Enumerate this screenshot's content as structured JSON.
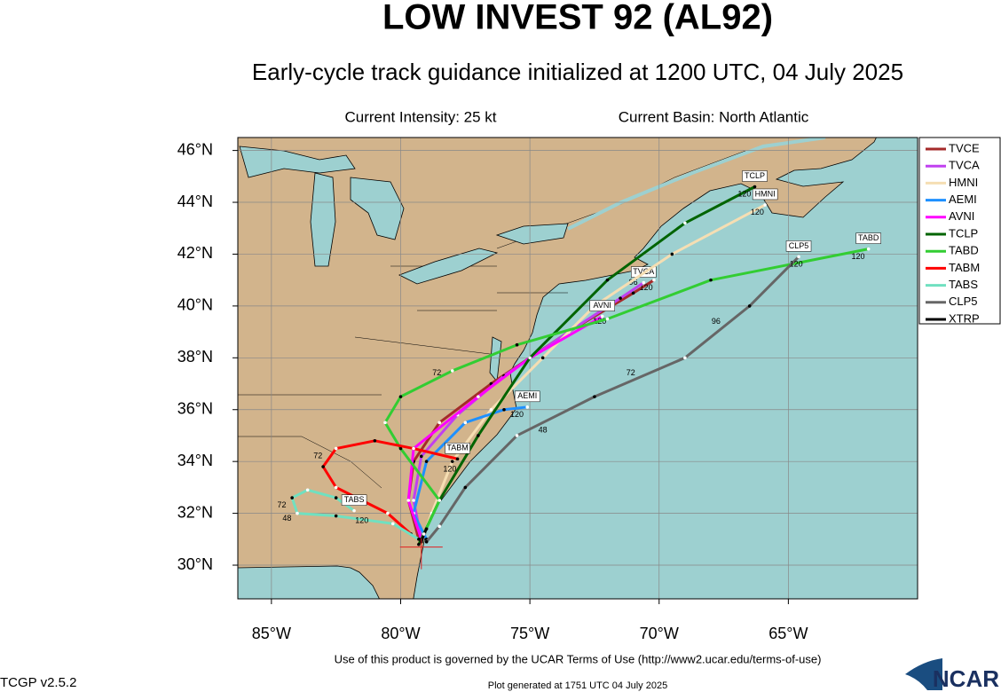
{
  "header": {
    "title": "LOW INVEST 92 (AL92)",
    "subtitle": "Early-cycle track guidance initialized at 1200 UTC, 04 July 2025",
    "intensity": "Current Intensity: 25 kt",
    "basin": "Current Basin: North Atlantic"
  },
  "map": {
    "xlim": [
      -86.3,
      -60
    ],
    "ylim": [
      28.7,
      46.5
    ],
    "xticks": [
      {
        "value": -85,
        "label": "85°W"
      },
      {
        "value": -80,
        "label": "80°W"
      },
      {
        "value": -75,
        "label": "75°W"
      },
      {
        "value": -70,
        "label": "70°W"
      },
      {
        "value": -65,
        "label": "65°W"
      }
    ],
    "yticks": [
      {
        "value": 30,
        "label": "30°N"
      },
      {
        "value": 32,
        "label": "32°N"
      },
      {
        "value": 34,
        "label": "34°N"
      },
      {
        "value": 36,
        "label": "36°N"
      },
      {
        "value": 38,
        "label": "38°N"
      },
      {
        "value": 40,
        "label": "40°N"
      },
      {
        "value": 42,
        "label": "42°N"
      },
      {
        "value": 44,
        "label": "44°N"
      },
      {
        "value": 46,
        "label": "46°N"
      }
    ],
    "grid": true,
    "start": {
      "lon": -79.2,
      "lat": 30.7
    },
    "tracks": [
      {
        "name": "TVCE",
        "color": "#a52a2a",
        "tag": false,
        "lon": [
          -79.3,
          -79.7,
          -79.5,
          -78.5,
          -76.5,
          -73.5,
          -71.0,
          -70.2
        ],
        "lat": [
          31.0,
          32.5,
          34.0,
          35.5,
          37.0,
          39.0,
          40.5,
          41.0
        ],
        "hours": [
          {
            "text": "120",
            "lon": -70.5,
            "lat": 40.7
          }
        ]
      },
      {
        "name": "TVCA",
        "color": "#c040f0",
        "tag": true,
        "lon": [
          -79.2,
          -79.5,
          -79.2,
          -77.8,
          -76.0,
          -73.5,
          -71.5,
          -70.6
        ],
        "lat": [
          31.0,
          32.5,
          34.2,
          35.8,
          37.3,
          39.0,
          40.3,
          40.9
        ],
        "hours": [
          {
            "text": "96",
            "lon": -71.0,
            "lat": 40.9
          }
        ]
      },
      {
        "name": "HMNI",
        "color": "#f5deb3",
        "tag": true,
        "lon": [
          -79.2,
          -78.8,
          -78.0,
          -76.5,
          -74.5,
          -72.5,
          -69.5,
          -65.9
        ],
        "lat": [
          30.9,
          32.0,
          34.0,
          36.0,
          38.0,
          40.0,
          42.0,
          43.9
        ],
        "hours": [
          {
            "text": "120",
            "lon": -66.2,
            "lat": 43.6
          }
        ]
      },
      {
        "name": "AEMI",
        "color": "#1e90ff",
        "tag": true,
        "lon": [
          -79.0,
          -79.5,
          -79.0,
          -77.5,
          -76.0,
          -75.1
        ],
        "lat": [
          31.0,
          32.0,
          34.0,
          35.5,
          36.0,
          36.1
        ],
        "hours": [
          {
            "text": "120",
            "lon": -75.5,
            "lat": 35.8
          }
        ]
      },
      {
        "name": "AVNI",
        "color": "#ff00ff",
        "tag": true,
        "lon": [
          -79.2,
          -79.7,
          -79.5,
          -77.0,
          -75.0,
          -72.2
        ],
        "lat": [
          31.0,
          32.5,
          34.5,
          36.5,
          38.0,
          39.6
        ],
        "hours": [
          {
            "text": "120",
            "lon": -72.3,
            "lat": 39.4
          }
        ]
      },
      {
        "name": "TCLP",
        "color": "#006400",
        "tag": true,
        "lon": [
          -79.3,
          -78.5,
          -77.0,
          -75.0,
          -72.0,
          -69.0,
          -66.3
        ],
        "lat": [
          30.8,
          32.5,
          35.0,
          38.0,
          41.0,
          43.2,
          44.6
        ],
        "hours": [
          {
            "text": "120",
            "lon": -66.7,
            "lat": 44.3
          }
        ]
      },
      {
        "name": "TABD",
        "color": "#32cd32",
        "tag": true,
        "lon": [
          -79.2,
          -78.5,
          -80.0,
          -80.6,
          -80.0,
          -78.0,
          -75.5,
          -72.0,
          -68.0,
          -61.9
        ],
        "lat": [
          31.0,
          32.5,
          34.5,
          35.5,
          36.5,
          37.5,
          38.5,
          39.5,
          41.0,
          42.2
        ],
        "hours": [
          {
            "text": "72",
            "lon": -78.6,
            "lat": 37.4
          },
          {
            "text": "120",
            "lon": -62.3,
            "lat": 41.9
          }
        ]
      },
      {
        "name": "TABM",
        "color": "#ff0000",
        "tag": true,
        "lon": [
          -79.6,
          -80.5,
          -81.5,
          -82.5,
          -83.0,
          -82.5,
          -81.0,
          -79.5,
          -77.8
        ],
        "lat": [
          31.2,
          32.0,
          32.5,
          33.0,
          33.8,
          34.5,
          34.8,
          34.5,
          34.1
        ],
        "hours": [
          {
            "text": "72",
            "lon": -83.2,
            "lat": 34.2
          },
          {
            "text": "120",
            "lon": -78.1,
            "lat": 33.7
          }
        ]
      },
      {
        "name": "TABS",
        "color": "#70e0c0",
        "tag": true,
        "lon": [
          -79.3,
          -80.3,
          -82.5,
          -84.0,
          -84.2,
          -83.6,
          -82.5,
          -81.8
        ],
        "lat": [
          31.0,
          31.6,
          31.9,
          32.0,
          32.6,
          32.9,
          32.6,
          32.1
        ],
        "hours": [
          {
            "text": "72",
            "lon": -84.6,
            "lat": 32.3
          },
          {
            "text": "48",
            "lon": -84.4,
            "lat": 31.8
          },
          {
            "text": "120",
            "lon": -81.5,
            "lat": 31.7
          }
        ]
      },
      {
        "name": "CLP5",
        "color": "#666666",
        "tag": true,
        "lon": [
          -79.0,
          -78.5,
          -77.5,
          -75.5,
          -72.5,
          -69.0,
          -66.5,
          -64.6
        ],
        "lat": [
          30.9,
          31.5,
          33.0,
          35.0,
          36.5,
          38.0,
          40.0,
          41.9
        ],
        "hours": [
          {
            "text": "48",
            "lon": -74.5,
            "lat": 35.2
          },
          {
            "text": "72",
            "lon": -71.1,
            "lat": 37.4
          },
          {
            "text": "96",
            "lon": -67.8,
            "lat": 39.4
          },
          {
            "text": "120",
            "lon": -64.7,
            "lat": 41.6
          }
        ]
      },
      {
        "name": "XTRP",
        "color": "#000000",
        "tag": false,
        "lon": [
          -79.2,
          -79.1,
          -79.0
        ],
        "lat": [
          30.9,
          31.2,
          31.4
        ],
        "hours": []
      }
    ]
  },
  "footer": {
    "terms": "Use of this product is governed by the UCAR Terms of Use (http://www2.ucar.edu/terms-of-use)",
    "version": "TCGP v2.5.2",
    "generated": "Plot generated at 1751 UTC   04 July 2025",
    "logo": "NCAR"
  }
}
